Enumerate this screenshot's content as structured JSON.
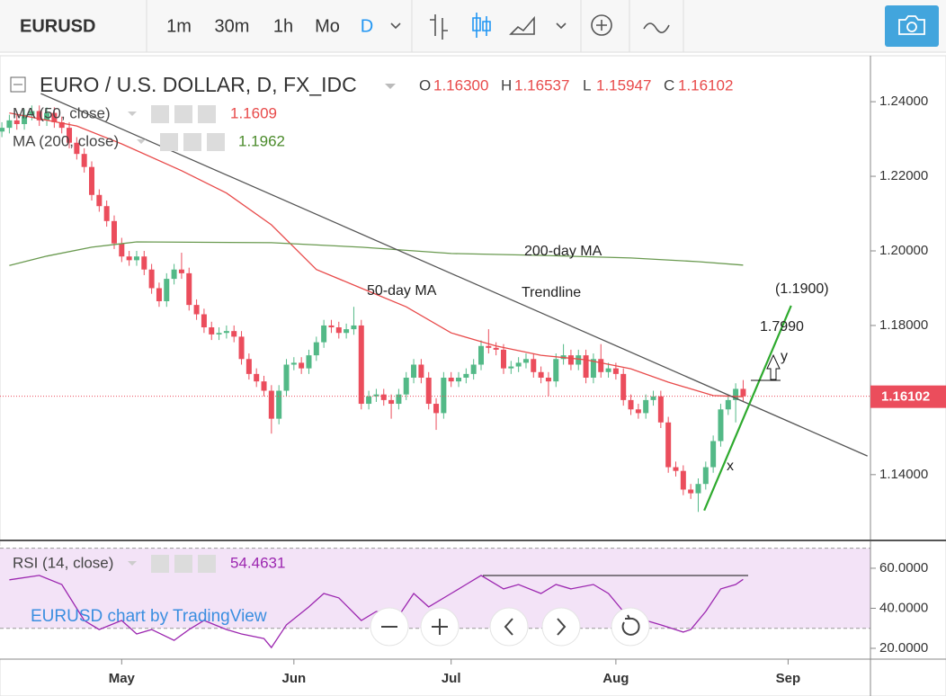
{
  "toolbar": {
    "symbol": "EURUSD",
    "intervals": [
      "1m",
      "30m",
      "1h",
      "Mo",
      "D"
    ]
  },
  "chart_data": {
    "type": "candlestick",
    "title": "EURO / U.S. DOLLAR, D, FX_IDC",
    "ohlc_keys": [
      "O",
      "H",
      "L",
      "C"
    ],
    "last_value_labels": [
      "1.16300",
      "1.16537",
      "1.15947",
      "1.16102"
    ],
    "up_color": "#53b987",
    "down_color": "#eb4d5c",
    "candles": [
      [
        1.232,
        1.2345,
        1.2305,
        1.233
      ],
      [
        1.233,
        1.2365,
        1.2315,
        1.235
      ],
      [
        1.235,
        1.2365,
        1.2325,
        1.234
      ],
      [
        1.234,
        1.238,
        1.2325,
        1.2365
      ],
      [
        1.2365,
        1.239,
        1.235,
        1.2375
      ],
      [
        1.2375,
        1.239,
        1.2335,
        1.235
      ],
      [
        1.235,
        1.2385,
        1.2335,
        1.237
      ],
      [
        1.237,
        1.2385,
        1.233,
        1.2345
      ],
      [
        1.2345,
        1.236,
        1.2315,
        1.233
      ],
      [
        1.233,
        1.2345,
        1.2275,
        1.229
      ],
      [
        1.229,
        1.2305,
        1.2245,
        1.226
      ],
      [
        1.226,
        1.2275,
        1.221,
        1.2225
      ],
      [
        1.2225,
        1.224,
        1.2135,
        1.215
      ],
      [
        1.215,
        1.2165,
        1.2105,
        1.212
      ],
      [
        1.212,
        1.2135,
        1.2065,
        1.208
      ],
      [
        1.208,
        1.2095,
        1.2005,
        1.202
      ],
      [
        1.202,
        1.2035,
        1.197,
        1.1985
      ],
      [
        1.1985,
        1.2,
        1.196,
        1.1975
      ],
      [
        1.1975,
        1.2,
        1.196,
        1.1985
      ],
      [
        1.1985,
        1.2,
        1.1935,
        1.195
      ],
      [
        1.195,
        1.1965,
        1.1885,
        1.19
      ],
      [
        1.19,
        1.1915,
        1.185,
        1.1865
      ],
      [
        1.1865,
        1.194,
        1.185,
        1.1925
      ],
      [
        1.1925,
        1.1965,
        1.191,
        1.195
      ],
      [
        1.195,
        1.1995,
        1.1925,
        1.194
      ],
      [
        1.194,
        1.1955,
        1.184,
        1.1855
      ],
      [
        1.1855,
        1.187,
        1.1815,
        1.183
      ],
      [
        1.183,
        1.1845,
        1.178,
        1.1795
      ],
      [
        1.1795,
        1.181,
        1.1761,
        1.1776
      ],
      [
        1.1776,
        1.1795,
        1.1761,
        1.178
      ],
      [
        1.178,
        1.18,
        1.1765,
        1.1785
      ],
      [
        1.1785,
        1.18,
        1.1755,
        1.177
      ],
      [
        1.177,
        1.1785,
        1.1695,
        1.171
      ],
      [
        1.171,
        1.1725,
        1.1655,
        1.167
      ],
      [
        1.167,
        1.1685,
        1.1635,
        1.165
      ],
      [
        1.165,
        1.1665,
        1.161,
        1.1625
      ],
      [
        1.1625,
        1.164,
        1.151,
        1.155
      ],
      [
        1.155,
        1.164,
        1.1535,
        1.1625
      ],
      [
        1.1625,
        1.171,
        1.161,
        1.1695
      ],
      [
        1.1695,
        1.1715,
        1.168,
        1.17
      ],
      [
        1.17,
        1.1715,
        1.167,
        1.1685
      ],
      [
        1.1685,
        1.1735,
        1.167,
        1.172
      ],
      [
        1.172,
        1.177,
        1.1705,
        1.1755
      ],
      [
        1.1755,
        1.1815,
        1.174,
        1.18
      ],
      [
        1.18,
        1.1815,
        1.178,
        1.1795
      ],
      [
        1.1795,
        1.181,
        1.1765,
        1.178
      ],
      [
        1.178,
        1.1805,
        1.1765,
        1.179
      ],
      [
        1.179,
        1.185,
        1.1775,
        1.18
      ],
      [
        1.18,
        1.1815,
        1.1575,
        1.159
      ],
      [
        1.159,
        1.1625,
        1.1575,
        1.161
      ],
      [
        1.161,
        1.163,
        1.1595,
        1.1615
      ],
      [
        1.1615,
        1.163,
        1.1585,
        1.16
      ],
      [
        1.16,
        1.1615,
        1.155,
        1.159
      ],
      [
        1.159,
        1.163,
        1.1575,
        1.1615
      ],
      [
        1.1615,
        1.1675,
        1.16,
        1.166
      ],
      [
        1.166,
        1.171,
        1.1645,
        1.1695
      ],
      [
        1.1695,
        1.171,
        1.1645,
        1.166
      ],
      [
        1.166,
        1.1675,
        1.1575,
        1.159
      ],
      [
        1.159,
        1.1605,
        1.152,
        1.1565
      ],
      [
        1.1565,
        1.1675,
        1.155,
        1.166
      ],
      [
        1.166,
        1.1675,
        1.1635,
        1.165
      ],
      [
        1.165,
        1.1675,
        1.1635,
        1.166
      ],
      [
        1.166,
        1.1685,
        1.1645,
        1.167
      ],
      [
        1.167,
        1.171,
        1.1655,
        1.1695
      ],
      [
        1.1695,
        1.176,
        1.168,
        1.1745
      ],
      [
        1.1745,
        1.179,
        1.1725,
        1.174
      ],
      [
        1.174,
        1.1755,
        1.172,
        1.1735
      ],
      [
        1.1735,
        1.175,
        1.167,
        1.1685
      ],
      [
        1.1685,
        1.1705,
        1.167,
        1.169
      ],
      [
        1.169,
        1.1715,
        1.1675,
        1.17
      ],
      [
        1.17,
        1.1725,
        1.1685,
        1.171
      ],
      [
        1.171,
        1.1725,
        1.166,
        1.1675
      ],
      [
        1.1675,
        1.169,
        1.1645,
        1.166
      ],
      [
        1.166,
        1.1675,
        1.161,
        1.165
      ],
      [
        1.165,
        1.1725,
        1.1635,
        1.171
      ],
      [
        1.171,
        1.175,
        1.1695,
        1.172
      ],
      [
        1.172,
        1.1735,
        1.168,
        1.1695
      ],
      [
        1.1695,
        1.1735,
        1.168,
        1.172
      ],
      [
        1.172,
        1.1735,
        1.1645,
        1.166
      ],
      [
        1.166,
        1.1725,
        1.1645,
        1.171
      ],
      [
        1.171,
        1.175,
        1.166,
        1.1675
      ],
      [
        1.1675,
        1.17,
        1.166,
        1.1685
      ],
      [
        1.1685,
        1.17,
        1.1655,
        1.167
      ],
      [
        1.167,
        1.1685,
        1.1585,
        1.16
      ],
      [
        1.16,
        1.1615,
        1.156,
        1.1575
      ],
      [
        1.1575,
        1.159,
        1.155,
        1.1565
      ],
      [
        1.1565,
        1.1615,
        1.155,
        1.16
      ],
      [
        1.16,
        1.1625,
        1.1585,
        1.161
      ],
      [
        1.161,
        1.1625,
        1.1525,
        1.154
      ],
      [
        1.154,
        1.1555,
        1.1405,
        1.142
      ],
      [
        1.142,
        1.1435,
        1.1395,
        1.141
      ],
      [
        1.141,
        1.1425,
        1.1345,
        1.136
      ],
      [
        1.136,
        1.1375,
        1.1335,
        1.135
      ],
      [
        1.135,
        1.139,
        1.13,
        1.1375
      ],
      [
        1.1375,
        1.1435,
        1.136,
        1.142
      ],
      [
        1.142,
        1.1505,
        1.1405,
        1.149
      ],
      [
        1.149,
        1.159,
        1.1475,
        1.1575
      ],
      [
        1.1575,
        1.1615,
        1.156,
        1.16
      ],
      [
        1.16,
        1.1645,
        1.154,
        1.163
      ],
      [
        1.163,
        1.16537,
        1.15947,
        1.16102
      ]
    ],
    "xlim": [
      -0.25,
      116
    ],
    "xticks": [
      {
        "value": 16,
        "label": "May"
      },
      {
        "value": 39,
        "label": "Jun"
      },
      {
        "value": 60,
        "label": "Jul"
      },
      {
        "value": 82,
        "label": "Aug"
      },
      {
        "value": 105,
        "label": "Sep"
      }
    ],
    "ylim": [
      1.1226,
      1.2516
    ],
    "yticks": [
      {
        "value": 1.24,
        "label": "1.24000"
      },
      {
        "value": 1.22,
        "label": "1.22000"
      },
      {
        "value": 1.2,
        "label": "1.20000"
      },
      {
        "value": 1.18,
        "label": "1.18000"
      },
      {
        "value": 1.14,
        "label": "1.14000"
      }
    ],
    "ma_series": [
      {
        "name": "MA (50, close)",
        "color": "#e84a4a",
        "x": [
          1,
          10,
          16,
          24,
          30,
          36,
          42,
          48,
          54,
          60,
          66,
          72,
          78,
          84,
          89,
          95,
          99
        ],
        "values": [
          1.237,
          1.2335,
          1.2287,
          1.2215,
          1.2155,
          1.207,
          1.195,
          1.19,
          1.185,
          1.178,
          1.1745,
          1.172,
          1.1708,
          1.1684,
          1.1648,
          1.1612,
          1.1609
        ]
      },
      {
        "name": "MA (200, close)",
        "color": "#6a9a50",
        "x": [
          1,
          6,
          12,
          18,
          36,
          48,
          60,
          72,
          84,
          93,
          99
        ],
        "values": [
          1.1961,
          1.1986,
          1.201,
          1.2024,
          1.2022,
          1.201,
          1.1993,
          1.1988,
          1.1981,
          1.1971,
          1.1962
        ]
      }
    ],
    "drawings": [
      {
        "x": [
          5.2,
          115.6
        ],
        "y": [
          1.2422,
          1.145
        ],
        "color": "#555555"
      },
      {
        "x": [
          93.8,
          105.4
        ],
        "y": [
          1.1304,
          1.1853
        ],
        "color": "#2eaa2e"
      }
    ],
    "annotations": [
      "200-day MA",
      "50-day MA",
      "Trendline",
      "(1.1900)",
      "1.7990",
      "y",
      "x"
    ],
    "watermark": "EURUSD chart by TradingView",
    "rsi": {
      "name": "RSI (14, close)",
      "color": "#9c27b0",
      "x": [
        1,
        5,
        8,
        11,
        13,
        16,
        18,
        20,
        23,
        25,
        27,
        30,
        32,
        35,
        36,
        38,
        41,
        43,
        45,
        48,
        50,
        53,
        55,
        57,
        60,
        62,
        64,
        67,
        69,
        72,
        74,
        76,
        79,
        81,
        84,
        86,
        88,
        91,
        92,
        94,
        96,
        98,
        99
      ],
      "values": [
        54.2,
        56.4,
        51.9,
        33.9,
        29.4,
        33.9,
        27.2,
        29.4,
        24.0,
        29.4,
        33.9,
        29.4,
        27.2,
        24.9,
        20.4,
        31.7,
        40.7,
        47.4,
        45.2,
        33.9,
        38.4,
        36.2,
        47.4,
        40.7,
        47.4,
        51.9,
        56.4,
        49.7,
        51.9,
        47.4,
        51.9,
        49.7,
        51.9,
        47.4,
        33.9,
        33.9,
        31.7,
        28.1,
        29.4,
        38.4,
        49.7,
        51.9,
        54.4631
      ],
      "band": [
        30,
        70
      ],
      "ylim": [
        14.6,
        71.2
      ],
      "yticks": [
        {
          "value": 60,
          "label": "60.0000"
        },
        {
          "value": 40,
          "label": "40.0000"
        },
        {
          "value": 20,
          "label": "20.0000"
        }
      ]
    }
  }
}
